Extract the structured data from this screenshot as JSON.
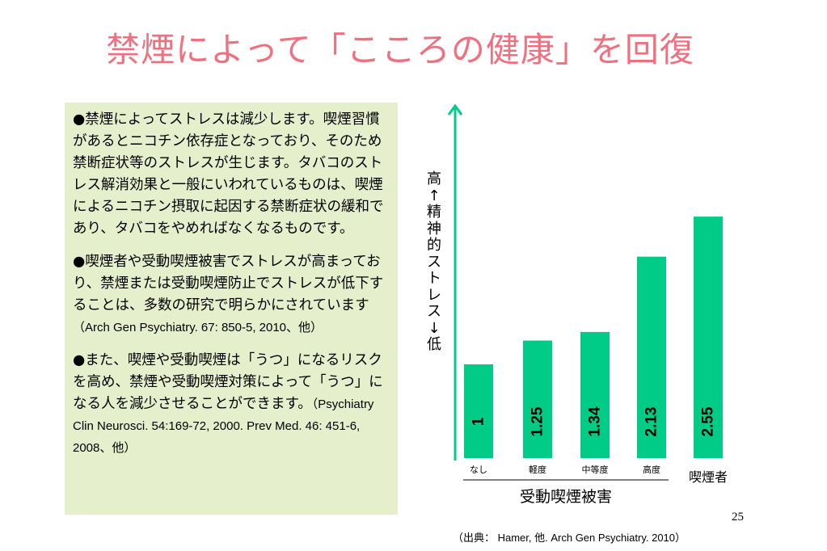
{
  "slide": {
    "title": "禁煙によって「こころの健康」を回復",
    "page_number": "25",
    "source": "（出典： Hamer, 他. Arch Gen Psychiatry. 2010）"
  },
  "textbox": {
    "para1": "●禁煙によってストレスは減少します。喫煙習慣があるとニコチン依存症となっており、そのため禁断症状等のストレスが生じます。タバコのストレス解消効果と一般にいわれているものは、喫煙によるニコチン摂取に起因する禁断症状の緩和であり、タバコをやめればなくなるものです。",
    "para2": "●喫煙者や受動喫煙被害でストレスが高まっており、禁煙または受動喫煙防止でストレスが低下することは、多数の研究で明らかにされています",
    "para2_cite": "（Arch Gen Psychiatry. 67: 850-5, 2010、他）",
    "para3": "●また、喫煙や受動喫煙は「うつ」になるリスクを高め、禁煙や受動喫煙対策によって「うつ」になる人を減少させることができます。",
    "para3_cite": "（Psychiatry Clin Neurosci. 54:169-72, 2000. Prev Med. 46: 451-6, 2008、他）"
  },
  "chart_data": {
    "type": "bar",
    "categories": [
      "なし",
      "軽度",
      "中等度",
      "高度",
      "喫煙者"
    ],
    "values": [
      1,
      1.25,
      1.34,
      2.13,
      2.55
    ],
    "value_labels": [
      "1",
      "1.25",
      "1.34",
      "2.13",
      "2.55"
    ],
    "ylabel": "高↑精神的ストレス↓低",
    "group_label": "受動喫煙被害",
    "ylim": [
      0,
      3
    ],
    "bar_color": "#00cc88",
    "bar_border": "#ffffff",
    "axis_color": "#00cc88",
    "grid": false,
    "legend": "none"
  }
}
